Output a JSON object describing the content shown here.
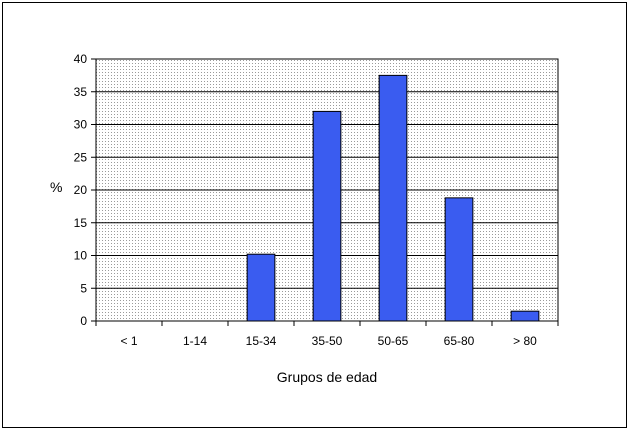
{
  "chart_data": {
    "type": "bar",
    "categories": [
      "< 1",
      "1-14",
      "15-34",
      "35-50",
      "50-65",
      "65-80",
      "> 80"
    ],
    "values": [
      0,
      0,
      10.2,
      32,
      37.5,
      18.8,
      1.5
    ],
    "xlabel": "Grupos de edad",
    "ylabel": "%",
    "ylim": [
      0,
      40
    ],
    "yticks": [
      0,
      5,
      10,
      15,
      20,
      25,
      30,
      35,
      40
    ],
    "grid": true,
    "colors": {
      "bar": "#3a5cf0",
      "bar_border": "#000000",
      "plot_background_dots": "#9a9a9a"
    }
  }
}
